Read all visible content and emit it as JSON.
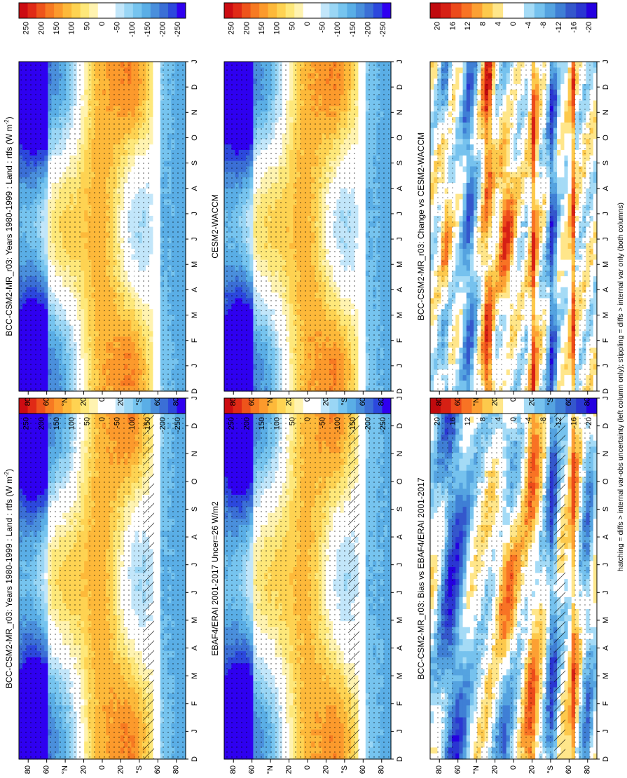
{
  "footnote": "hatching = diffs > internal var-obs uncertainty (left column only); stippling = diffs > internal var only (both columns)",
  "palettes": {
    "main": [
      "#2f00f0",
      "#2c48dd",
      "#3b6fd6",
      "#4a8fdc",
      "#5aaee6",
      "#76c4ef",
      "#9ad6f5",
      "#c2e6fa",
      "#ffffff",
      "#ffffff",
      "#fff3b0",
      "#fee87a",
      "#fed352",
      "#fdb93a",
      "#fc9a2c",
      "#f77a22",
      "#ee541b",
      "#e02a16",
      "#cc0c12"
    ],
    "diff": [
      "#2400e0",
      "#2a36d2",
      "#3457cc",
      "#3f7fd5",
      "#55a3e0",
      "#76c2ee",
      "#a5dbf6",
      "#ffffff",
      "#ffffff",
      "#ffe68a",
      "#fdc94c",
      "#fca033",
      "#f87324",
      "#ec4a1a",
      "#d62014",
      "#c00a0e"
    ]
  },
  "chart_data": [
    {
      "type": "heatmap",
      "title": "BCC-CSM2-MR_r03: Years 1980-1999 : Land : rtfs (W m",
      "title_sup": "-2",
      "title_end": ")",
      "months": [
        "D",
        "J",
        "F",
        "M",
        "A",
        "M",
        "J",
        "J",
        "A",
        "S",
        "O",
        "N",
        "D",
        "J"
      ],
      "lat_ticks": [
        "80",
        "60",
        "°N",
        "20",
        "0",
        "20",
        "°S",
        "60",
        "80"
      ],
      "colorbar": [
        "250",
        "200",
        "150",
        "100",
        "50",
        "0",
        "-50",
        "-100",
        "-150",
        "-200",
        "-250"
      ],
      "range": [
        -275,
        275
      ],
      "palette": "main",
      "field": "base",
      "amp": 1.0,
      "hatch": true,
      "stipple": 0.55
    },
    {
      "type": "heatmap",
      "title": "EBAF4/ERAI 2001-2017 Uncer=26 W/m2",
      "months": [
        "D",
        "J",
        "F",
        "M",
        "A",
        "M",
        "J",
        "J",
        "A",
        "S",
        "O",
        "N",
        "D",
        "J"
      ],
      "lat_ticks": [
        "80",
        "60",
        "°N",
        "20",
        "0",
        "20",
        "°S",
        "60",
        "80"
      ],
      "colorbar": [
        "250",
        "200",
        "150",
        "100",
        "50",
        "0",
        "-50",
        "-100",
        "-150",
        "-200",
        "-250"
      ],
      "range": [
        -275,
        275
      ],
      "palette": "main",
      "field": "base",
      "amp": 0.95,
      "hatch": true,
      "stipple": 0.55
    },
    {
      "type": "heatmap",
      "title": "BCC-CSM2-MR_r03: Bias vs EBAF4/ERAI 2001-2017",
      "months": [
        "D",
        "J",
        "F",
        "M",
        "A",
        "M",
        "J",
        "J",
        "A",
        "S",
        "O",
        "N",
        "D",
        "J"
      ],
      "lat_ticks": [
        "80",
        "60",
        "°N",
        "20",
        "0",
        "20",
        "°S",
        "60",
        "80"
      ],
      "colorbar": [
        "20",
        "16",
        "12",
        "8",
        "4",
        "0",
        "-4",
        "-8",
        "-12",
        "-16",
        "-20"
      ],
      "range": [
        -22,
        22
      ],
      "palette": "diff",
      "field": "bias",
      "amp": 1.0,
      "hatch": true,
      "stipple": 0.45
    },
    {
      "type": "heatmap",
      "title": "BCC-CSM2-MR_r03: Years 1980-1999 : Land : rtfs (W m",
      "title_sup": "-2",
      "title_end": ")",
      "months": [
        "D",
        "J",
        "F",
        "M",
        "A",
        "M",
        "J",
        "J",
        "A",
        "S",
        "O",
        "N",
        "D",
        "J"
      ],
      "lat_ticks": [
        "80",
        "60",
        "°N",
        "20",
        "0",
        "20",
        "°S",
        "60",
        "80"
      ],
      "colorbar": [
        "250",
        "200",
        "150",
        "100",
        "50",
        "0",
        "-50",
        "-100",
        "-150",
        "-200",
        "-250"
      ],
      "range": [
        -275,
        275
      ],
      "palette": "main",
      "field": "base",
      "amp": 1.0,
      "hatch": false,
      "stipple": 0.55
    },
    {
      "type": "heatmap",
      "title": "CESM2-WACCM",
      "months": [
        "D",
        "J",
        "F",
        "M",
        "A",
        "M",
        "J",
        "J",
        "A",
        "S",
        "O",
        "N",
        "D",
        "J"
      ],
      "lat_ticks": [
        "80",
        "60",
        "°N",
        "20",
        "0",
        "20",
        "°S",
        "60",
        "80"
      ],
      "colorbar": [
        "250",
        "200",
        "150",
        "100",
        "50",
        "0",
        "-50",
        "-100",
        "-150",
        "-200",
        "-250"
      ],
      "range": [
        -275,
        275
      ],
      "palette": "main",
      "field": "base",
      "amp": 0.98,
      "hatch": false,
      "stipple": 0.55
    },
    {
      "type": "heatmap",
      "title": "BCC-CSM2-MR_r03: Change vs CESM2-WACCM",
      "months": [
        "D",
        "J",
        "F",
        "M",
        "A",
        "M",
        "J",
        "J",
        "A",
        "S",
        "O",
        "N",
        "D",
        "J"
      ],
      "lat_ticks": [
        "80",
        "60",
        "°N",
        "20",
        "0",
        "20",
        "°S",
        "60",
        "80"
      ],
      "colorbar": [
        "20",
        "16",
        "12",
        "8",
        "4",
        "0",
        "-4",
        "-8",
        "-12",
        "-16",
        "-20"
      ],
      "range": [
        -22,
        22
      ],
      "palette": "diff",
      "field": "change",
      "amp": 1.0,
      "hatch": false,
      "stipple": 0.4
    }
  ]
}
